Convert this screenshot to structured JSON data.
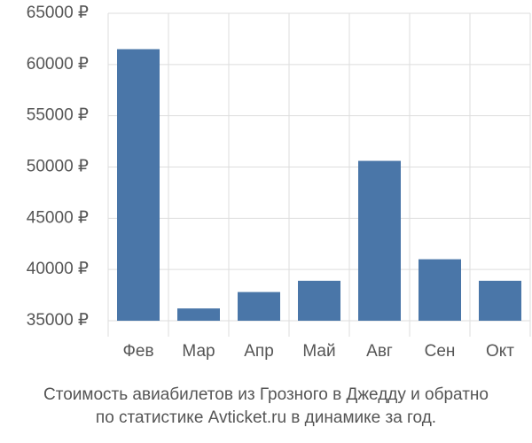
{
  "chart_data": {
    "type": "bar",
    "title": [
      "Стоимость авиабилетов из Грозного в Джедду и обратно",
      "по статистике Avticket.ru в динамике за год."
    ],
    "categories": [
      "Фев",
      "Мар",
      "Апр",
      "Май",
      "Авг",
      "Сен",
      "Окт"
    ],
    "values": [
      61500,
      36200,
      37800,
      38900,
      50600,
      41000,
      38900
    ],
    "color": "#4a76a8",
    "ylim": [
      35000,
      65000
    ],
    "yticks": [
      {
        "value": 35000,
        "label": "35000 ₽"
      },
      {
        "value": 40000,
        "label": "40000 ₽"
      },
      {
        "value": 45000,
        "label": "45000 ₽"
      },
      {
        "value": 50000,
        "label": "50000 ₽"
      },
      {
        "value": 55000,
        "label": "55000 ₽"
      },
      {
        "value": 60000,
        "label": "60000 ₽"
      },
      {
        "value": 65000,
        "label": "65000 ₽"
      }
    ],
    "grid": true
  }
}
